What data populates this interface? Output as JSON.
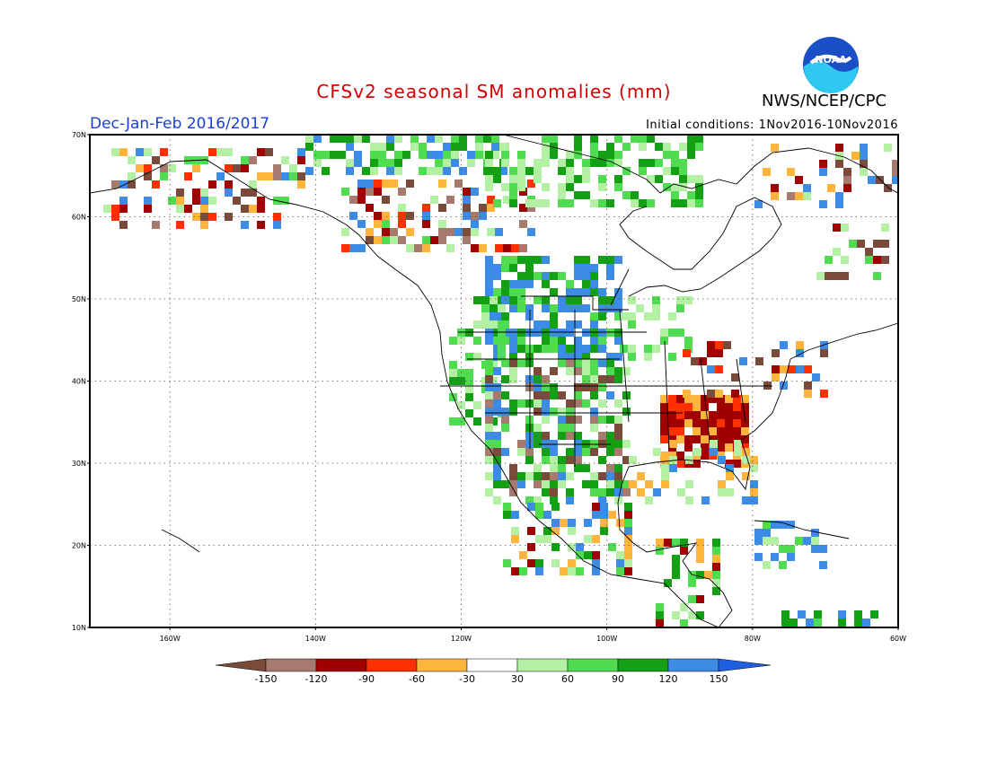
{
  "header": {
    "title": "CFSv2 seasonal SM anomalies (mm)",
    "agency": "NWS/NCEP/CPC",
    "season": "Dec-Jan-Feb 2016/2017",
    "initial_conditions": "Initial conditions: 1Nov2016-10Nov2016",
    "logo_text": "NOAA"
  },
  "map": {
    "lat_labels": [
      "70N",
      "60N",
      "50N",
      "40N",
      "30N",
      "20N",
      "10N"
    ],
    "lon_labels": [
      "160W",
      "140W",
      "120W",
      "100W",
      "80W",
      "60W"
    ],
    "lat_range": [
      10,
      70
    ],
    "lon_range": [
      -171,
      -60
    ],
    "grid_style": "dotted"
  },
  "legend": {
    "tick_labels": [
      "-150",
      "-120",
      "-90",
      "-60",
      "-30",
      "30",
      "60",
      "90",
      "120",
      "150"
    ],
    "colors": [
      "#7a4a3a",
      "#a77a70",
      "#a00000",
      "#ff3000",
      "#ffb43c",
      "#ffffff",
      "#b4f0a4",
      "#50dc50",
      "#14a014",
      "#3c8ce6",
      "#2060e0"
    ],
    "arrow_left_color": "#7a4a3a",
    "arrow_right_color": "#2060e0"
  }
}
